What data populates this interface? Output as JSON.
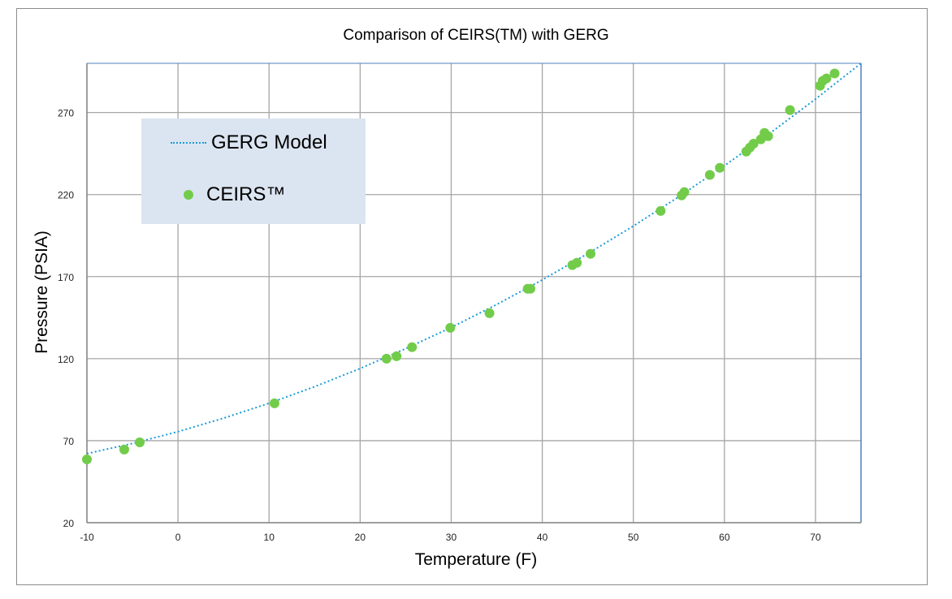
{
  "chart_data": {
    "type": "scatter",
    "title": "Comparison of CEIRS(TM) with GERG",
    "xlabel": "Temperature (F)",
    "ylabel": "Pressure (PSIA)",
    "xlim": [
      -10,
      75
    ],
    "ylim": [
      20,
      300
    ],
    "xticks": [
      -10,
      0,
      10,
      20,
      30,
      40,
      50,
      60,
      70
    ],
    "yticks": [
      20,
      70,
      120,
      170,
      220,
      270
    ],
    "grid": true,
    "legend_position": "top-left",
    "series": [
      {
        "name": "GERG Model",
        "style": "dotted-line",
        "color": "#1a9bd7",
        "x": [
          -10,
          -5,
          0,
          5,
          10,
          15,
          20,
          25,
          30,
          35,
          40,
          45,
          50,
          55,
          60,
          65,
          70,
          75
        ],
        "y": [
          62.1,
          68.3,
          75.5,
          83.7,
          92.8,
          102.9,
          114.0,
          126.1,
          139.0,
          153.0,
          168.0,
          184.0,
          200.8,
          218.7,
          237.6,
          257.4,
          278.2,
          300.0
        ]
      },
      {
        "name": "CEIRS™",
        "style": "markers",
        "color": "#72cc4a",
        "x": [
          -10,
          -5.9,
          -4.2,
          10.6,
          22.9,
          24,
          25.7,
          29.9,
          34.2,
          38.4,
          38.7,
          43.3,
          43.8,
          45.3,
          53,
          55.3,
          55.6,
          58.4,
          59.5,
          62.4,
          62.8,
          63.2,
          64,
          64.4,
          64.8,
          67.2,
          70.5,
          70.8,
          71.2,
          72.1
        ],
        "y": [
          58.6,
          64.6,
          69,
          92.8,
          120,
          121.5,
          127,
          138.8,
          147.7,
          162.6,
          162.6,
          177,
          178.4,
          183.9,
          210,
          219.5,
          221.5,
          232,
          236.3,
          246.2,
          248.7,
          251,
          253.7,
          257.6,
          255.6,
          271.5,
          286.3,
          289.3,
          290.8,
          293.8
        ]
      }
    ]
  }
}
